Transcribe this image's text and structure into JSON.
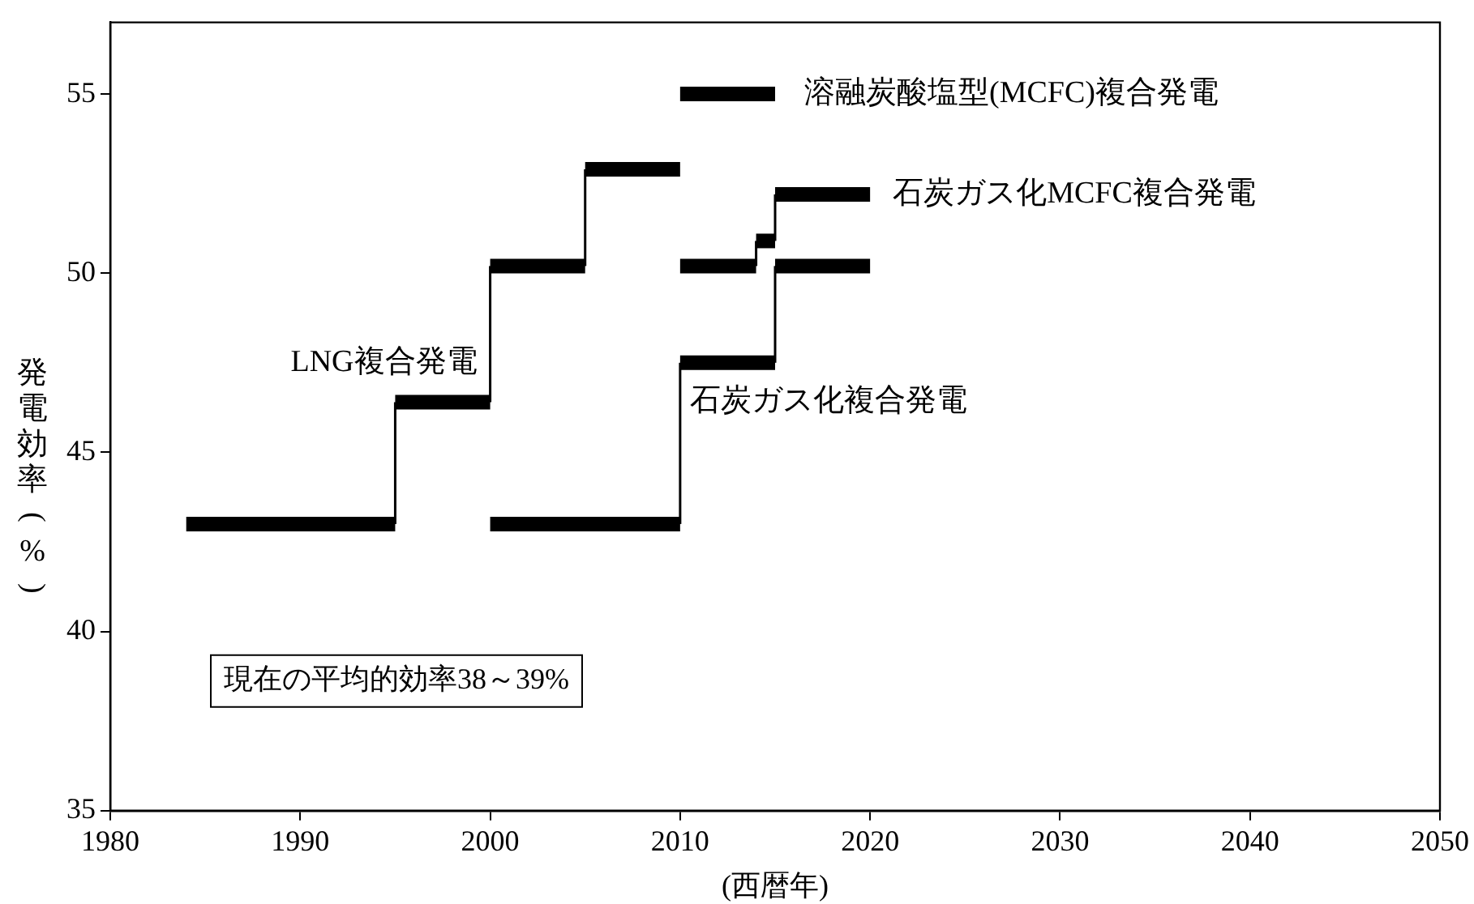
{
  "chart_data": {
    "type": "line",
    "xlabel": "(西暦年)",
    "ylabel": "発電効率(%)",
    "xlim": [
      1980,
      2050
    ],
    "xticks": [
      1980,
      1990,
      2000,
      2010,
      2020,
      2030,
      2040,
      2050
    ],
    "ylim": [
      35,
      57
    ],
    "yticks": [
      35,
      40,
      45,
      50,
      55
    ],
    "grid": false,
    "legend": false,
    "marker": "none",
    "series": [
      {
        "name": "LNG複合発電",
        "color": "#000000",
        "x": [
          1984,
          1995,
          1995,
          2000,
          2000,
          2005,
          2005,
          2010
        ],
        "values": [
          43,
          43,
          46.4,
          46.4,
          50.2,
          50.2,
          52.9,
          52.9
        ]
      },
      {
        "name": "石炭ガス化複合発電",
        "color": "#000000",
        "x": [
          2000,
          2010,
          2010,
          2015,
          2015,
          2020
        ],
        "values": [
          43,
          43,
          47.5,
          47.5,
          50.2,
          50.2
        ]
      },
      {
        "name": "石炭ガス化MCFC複合発電",
        "color": "#000000",
        "x": [
          2010,
          2014,
          2014,
          2015,
          2015,
          2020
        ],
        "values": [
          50.2,
          50.2,
          50.9,
          50.9,
          52.2,
          52.2
        ]
      },
      {
        "name": "溶融炭酸塩型(MCFC)複合発電",
        "color": "#000000",
        "x": [
          2010,
          2015
        ],
        "values": [
          55,
          55
        ]
      }
    ],
    "annotations": [
      "現在の平均的効率38～39%"
    ]
  }
}
